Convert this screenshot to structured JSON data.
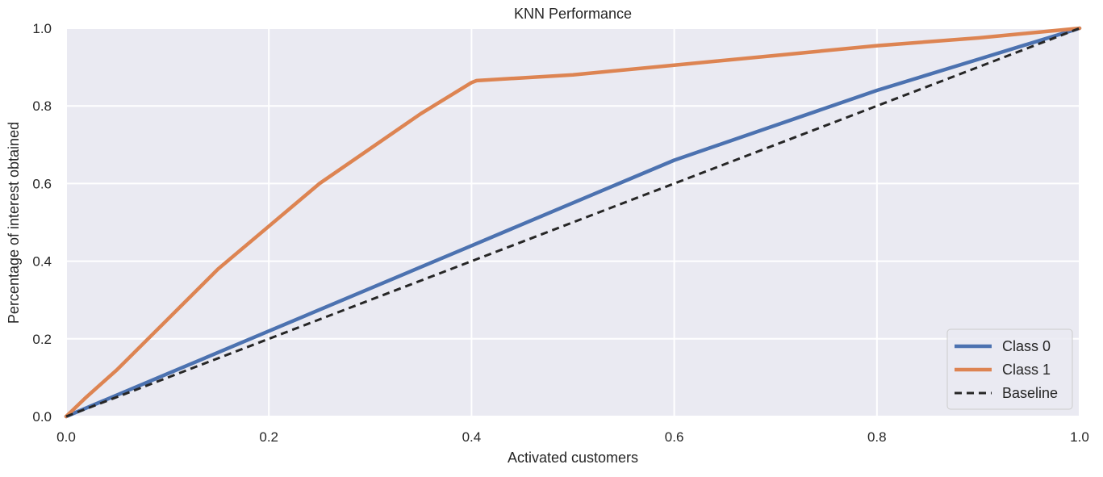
{
  "chart_data": {
    "type": "line",
    "title": "KNN Performance",
    "xlabel": "Activated customers",
    "ylabel": "Percentage of interest obtained",
    "xlim": [
      0,
      1
    ],
    "ylim": [
      0,
      1
    ],
    "xticks": [
      "0.0",
      "0.2",
      "0.4",
      "0.6",
      "0.8",
      "1.0"
    ],
    "yticks": [
      "0.0",
      "0.2",
      "0.4",
      "0.6",
      "0.8",
      "1.0"
    ],
    "grid": true,
    "legend_position": "bottom-right",
    "series": [
      {
        "name": "Class 0",
        "color": "#4c72b0",
        "style": "solid",
        "x": [
          0.0,
          0.1,
          0.2,
          0.3,
          0.4,
          0.5,
          0.6,
          0.7,
          0.8,
          0.9,
          1.0
        ],
        "y": [
          0.0,
          0.11,
          0.22,
          0.33,
          0.44,
          0.55,
          0.66,
          0.75,
          0.84,
          0.92,
          1.0
        ]
      },
      {
        "name": "Class 1",
        "color": "#dd8452",
        "style": "solid",
        "x": [
          0.0,
          0.02,
          0.05,
          0.1,
          0.15,
          0.2,
          0.25,
          0.3,
          0.35,
          0.4,
          0.405,
          0.5,
          0.6,
          0.7,
          0.8,
          0.9,
          1.0
        ],
        "y": [
          0.0,
          0.05,
          0.12,
          0.25,
          0.38,
          0.49,
          0.6,
          0.69,
          0.78,
          0.86,
          0.865,
          0.88,
          0.905,
          0.93,
          0.955,
          0.975,
          1.0
        ]
      },
      {
        "name": "Baseline",
        "color": "#262626",
        "style": "dashed",
        "x": [
          0.0,
          1.0
        ],
        "y": [
          0.0,
          1.0
        ]
      }
    ]
  }
}
